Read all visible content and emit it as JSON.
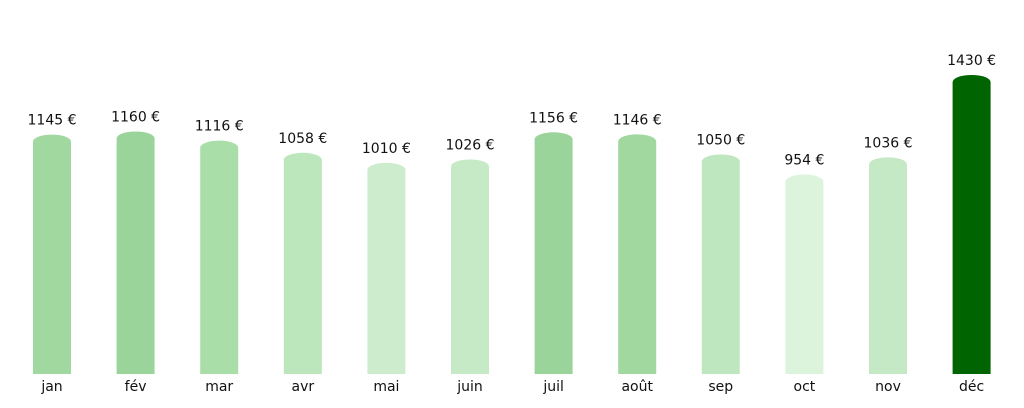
{
  "chart_data": {
    "type": "bar",
    "title": "",
    "xlabel": "",
    "ylabel": "",
    "ylim": [
      0,
      1430
    ],
    "grid": false,
    "categories": [
      "jan",
      "fév",
      "mar",
      "avr",
      "mai",
      "juin",
      "juil",
      "août",
      "sep",
      "oct",
      "nov",
      "déc"
    ],
    "values": [
      1145,
      1160,
      1116,
      1058,
      1010,
      1026,
      1156,
      1146,
      1050,
      954,
      1036,
      1430
    ],
    "data_labels": [
      "1145 €",
      "1160 €",
      "1116 €",
      "1058 €",
      "1010 €",
      "1026 €",
      "1156 €",
      "1146 €",
      "1050 €",
      "954 €",
      "1036 €",
      "1430 €"
    ],
    "colors": [
      "#a0d8a0",
      "#9bd49b",
      "#a9dea9",
      "#bce6bc",
      "#cdeccd",
      "#c6e9c6",
      "#9bd49b",
      "#a0d8a0",
      "#bfe7bf",
      "#dcf4dc",
      "#c5e9c5",
      "#006400"
    ],
    "bar_style": "rounded-top"
  }
}
